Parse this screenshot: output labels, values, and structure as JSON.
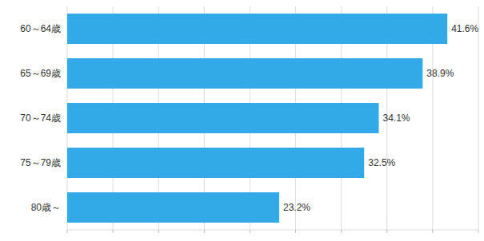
{
  "chart_data": {
    "type": "bar",
    "orientation": "horizontal",
    "categories": [
      "60～64歳",
      "65～69歳",
      "70～74歳",
      "75～79歳",
      "80歳～"
    ],
    "values": [
      41.6,
      38.9,
      34.1,
      32.5,
      23.2
    ],
    "value_labels": [
      "41.6%",
      "38.9%",
      "34.1%",
      "32.5%",
      "23.2%"
    ],
    "color": "#33aae8",
    "xlim": [
      0,
      45
    ],
    "xticks": [
      0,
      5,
      10,
      15,
      20,
      25,
      30,
      35,
      40,
      45
    ],
    "grid": true,
    "data_labels": true,
    "tick_labels": "y"
  }
}
